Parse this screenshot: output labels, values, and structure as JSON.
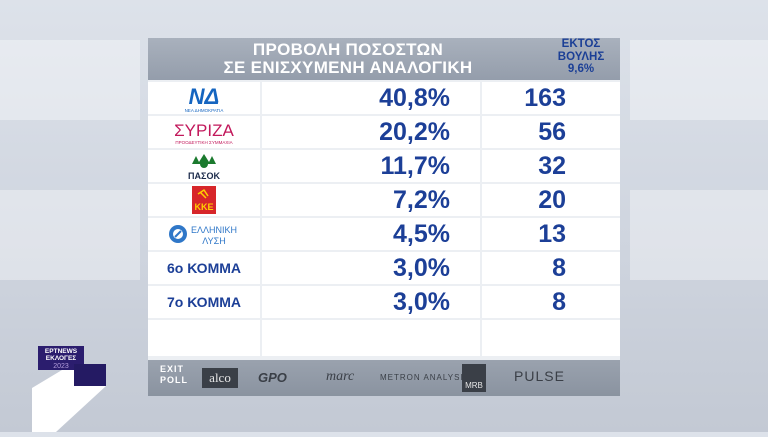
{
  "header": {
    "title_line1": "ΠΡΟΒΟΛΗ ΠΟΣΟΣΤΩΝ",
    "title_line2": "ΣΕ ΕΝΙΣΧΥΜΕΝΗ ΑΝΑΛΟΓΙΚΗ",
    "out_line1": "ΕΚΤΟΣ",
    "out_line2": "ΒΟΥΛΗΣ",
    "out_value": "9,6%"
  },
  "parties": [
    {
      "logo": "nd-logo",
      "logo_text": "ΝΔ",
      "logo_sub": "ΝΕΑ ΔΗΜΟΚΡΑΤΙΑ",
      "pct": "40,8%",
      "seats": "163"
    },
    {
      "logo": "syriza-logo",
      "logo_text": "ΣΥΡΙΖΑ",
      "logo_sub": "ΠΡΟΟΔΕΥΤΙΚΗ ΣΥΜΜΑΧΙΑ",
      "pct": "20,2%",
      "seats": "56"
    },
    {
      "logo": "pasok-logo",
      "logo_text": "ΠΑΣΟΚ",
      "pct": "11,7%",
      "seats": "32"
    },
    {
      "logo": "kke-logo",
      "logo_text": "ΚΚΕ",
      "pct": "7,2%",
      "seats": "20"
    },
    {
      "logo": "elliniki-lysi-logo",
      "logo_text": "ΕΛΛΗΝΙΚΗ",
      "logo_sub": "ΛΥΣΗ",
      "pct": "4,5%",
      "seats": "13"
    },
    {
      "name": "6ο ΚΟΜΜΑ",
      "pct": "3,0%",
      "seats": "8"
    },
    {
      "name": "7ο ΚΟΜΜΑ",
      "pct": "3,0%",
      "seats": "8"
    }
  ],
  "footer": {
    "exit_line1": "EXIT",
    "exit_line2": "POLL",
    "pollsters": [
      "alco",
      "GPO",
      "marc",
      "METRON ANALYSIS",
      "MRB",
      "PULSE"
    ]
  },
  "brand": {
    "line1": "ΕΡΤNEWS",
    "line2": "ΕΚΛΟΓΕΣ",
    "line3": "2023"
  },
  "colors": {
    "accent": "#1c3f97",
    "header": "#9aa2ae",
    "nd_blue": "#1565c0",
    "syriza_red": "#c2185b",
    "pasok_green": "#1b7a2e",
    "kke_red": "#d7262a"
  }
}
